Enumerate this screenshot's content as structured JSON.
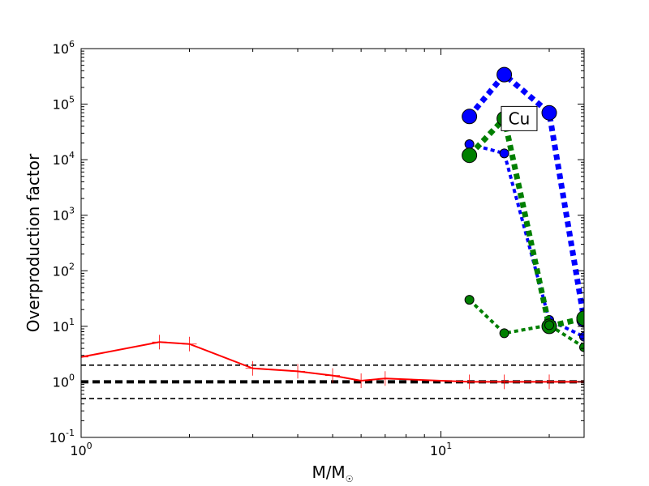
{
  "chart_data": {
    "type": "line",
    "title": "",
    "xlabel": "M/M",
    "xlabel_sub": "☉",
    "ylabel": "Overproduction factor",
    "x_scale": "log",
    "y_scale": "log",
    "xlim": [
      1,
      25
    ],
    "ylim": [
      0.1,
      1000000
    ],
    "grid": false,
    "x_ticks": [
      {
        "value": 1,
        "base": "10",
        "exp": "0"
      },
      {
        "value": 10,
        "base": "10",
        "exp": "1"
      }
    ],
    "y_ticks": [
      {
        "value": 0.1,
        "base": "10",
        "exp": "-1"
      },
      {
        "value": 1,
        "base": "10",
        "exp": "0"
      },
      {
        "value": 10,
        "base": "10",
        "exp": "1"
      },
      {
        "value": 100,
        "base": "10",
        "exp": "2"
      },
      {
        "value": 1000,
        "base": "10",
        "exp": "3"
      },
      {
        "value": 10000,
        "base": "10",
        "exp": "4"
      },
      {
        "value": 100000,
        "base": "10",
        "exp": "5"
      },
      {
        "value": 1000000,
        "base": "10",
        "exp": "6"
      }
    ],
    "annotation": {
      "text": "Cu",
      "x": 16.5,
      "y": 55000
    },
    "reference_lines": [
      {
        "y": 2.0,
        "style": "thin-dashed",
        "color": "#000000"
      },
      {
        "y": 1.0,
        "style": "thick-dashed",
        "color": "#000000"
      },
      {
        "y": 0.5,
        "style": "thin-dashed",
        "color": "#000000"
      }
    ],
    "series": [
      {
        "style": "solid",
        "color": "#ff0000",
        "marker": "plus",
        "x": [
          1,
          1.65,
          2,
          3,
          4,
          5,
          6,
          7,
          12,
          15,
          20,
          25
        ],
        "y": [
          2.8,
          5.2,
          4.8,
          1.75,
          1.55,
          1.3,
          1.05,
          1.15,
          1.0,
          1.0,
          1.0,
          1.0
        ]
      },
      {
        "style": "dotted-thick",
        "color": "#0000ff",
        "marker": "circle-large",
        "x": [
          12,
          15,
          20,
          25
        ],
        "y": [
          60000,
          340000,
          70000,
          13
        ]
      },
      {
        "style": "dotted",
        "color": "#0000ff",
        "marker": "circle-small",
        "x": [
          12,
          15,
          20,
          25
        ],
        "y": [
          19000,
          13000,
          13,
          6.5
        ]
      },
      {
        "style": "dotted-thick",
        "color": "#007f00",
        "marker": "circle-large",
        "x": [
          12,
          15,
          20,
          25
        ],
        "y": [
          12000,
          55000,
          10,
          14
        ]
      },
      {
        "style": "dotted",
        "color": "#007f00",
        "marker": "circle-small",
        "x": [
          12,
          15,
          20,
          25
        ],
        "y": [
          30,
          7.5,
          10.5,
          4.2
        ]
      }
    ]
  }
}
